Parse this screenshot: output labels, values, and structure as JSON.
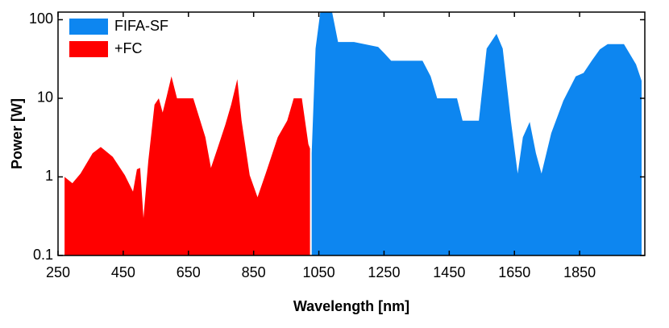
{
  "chart_data": {
    "type": "area",
    "xlabel": "Wavelength [nm]",
    "ylabel": "Power [W]",
    "log_y": true,
    "legend": "upper left",
    "xlim": [
      250,
      2050
    ],
    "xticks": [
      250,
      450,
      650,
      850,
      1050,
      1250,
      1450,
      1650,
      1850
    ],
    "ylim": [
      0.1,
      125
    ],
    "yticks": [
      0.1,
      1,
      10,
      100
    ],
    "series": [
      {
        "name": "FIFA-SF",
        "color": "#0d86f0",
        "x": [
          1028,
          1040,
          1055,
          1090,
          1109,
          1158,
          1232,
          1252,
          1272,
          1368,
          1393,
          1413,
          1474,
          1491,
          1541,
          1565,
          1595,
          1614,
          1639,
          1660,
          1676,
          1697,
          1716,
          1733,
          1763,
          1800,
          1838,
          1862,
          1887,
          1912,
          1936,
          1986,
          2023,
          2040
        ],
        "values": [
          2,
          43,
          130,
          130,
          52,
          52,
          45,
          37,
          30,
          30,
          19,
          10,
          10,
          5.2,
          5.2,
          43,
          66,
          43,
          5.2,
          1.1,
          3.2,
          5,
          2,
          1.1,
          3.6,
          9.3,
          19,
          21,
          30,
          42,
          49,
          49,
          27,
          16.7
        ]
      },
      {
        "name": "+FC",
        "color": "#ff0000",
        "x": [
          270,
          294,
          319,
          356,
          381,
          418,
          455,
          480,
          492,
          502,
          512,
          527,
          546,
          559,
          571,
          583,
          598,
          615,
          665,
          702,
          719,
          739,
          763,
          781,
          800,
          813,
          838,
          862,
          887,
          924,
          953,
          973,
          998,
          1018,
          1023
        ],
        "values": [
          1.0,
          0.83,
          1.1,
          2.0,
          2.4,
          1.8,
          1.05,
          0.65,
          1.25,
          1.3,
          0.3,
          1.6,
          8.3,
          10,
          6.6,
          10.5,
          19,
          10,
          10,
          3.2,
          1.3,
          2.3,
          4.6,
          8.3,
          17.5,
          5.2,
          1.05,
          0.55,
          1.1,
          3.2,
          5.2,
          10,
          10,
          2.6,
          2.3
        ]
      }
    ]
  }
}
